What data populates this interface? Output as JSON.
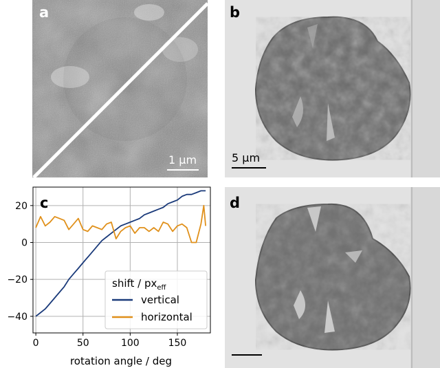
{
  "panels": {
    "a": {
      "letter": "a",
      "scale_label": "1 µm",
      "letter_color": "#ffffff"
    },
    "b": {
      "letter": "b",
      "scale_label": "5 µm"
    },
    "c": {
      "letter": "c"
    },
    "d": {
      "letter": "d"
    }
  },
  "chart_data": {
    "type": "line",
    "xlabel": "rotation angle / deg",
    "ylabel": "",
    "xlim": [
      -3,
      185
    ],
    "ylim": [
      -49,
      30
    ],
    "xticks": [
      0,
      50,
      100,
      150
    ],
    "yticks": [
      -40,
      -20,
      0,
      20
    ],
    "grid": true,
    "legend": {
      "title": "shift / px",
      "title_subscript": "eff",
      "placement": "bottom-right"
    },
    "series": [
      {
        "name": "vertical",
        "color": "#1a3a7a",
        "x": [
          0,
          5,
          10,
          15,
          20,
          25,
          30,
          35,
          40,
          45,
          50,
          55,
          60,
          65,
          70,
          75,
          80,
          85,
          90,
          95,
          100,
          105,
          110,
          115,
          120,
          125,
          130,
          135,
          140,
          145,
          150,
          155,
          160,
          165,
          170,
          175,
          180
        ],
        "y": [
          -40,
          -38,
          -36,
          -33,
          -30,
          -27,
          -24,
          -20,
          -17,
          -14,
          -11,
          -8,
          -5,
          -2,
          1,
          3,
          5,
          7,
          9,
          10,
          11,
          12,
          13,
          15,
          16,
          17,
          18,
          19,
          21,
          22,
          23,
          25,
          26,
          26,
          27,
          28,
          28
        ]
      },
      {
        "name": "horizontal",
        "color": "#e0901a",
        "x": [
          0,
          5,
          10,
          15,
          20,
          25,
          30,
          35,
          40,
          45,
          50,
          55,
          60,
          65,
          70,
          75,
          80,
          85,
          90,
          95,
          100,
          105,
          110,
          115,
          120,
          125,
          130,
          135,
          140,
          145,
          150,
          155,
          160,
          165,
          170,
          175,
          178,
          180
        ],
        "y": [
          8,
          14,
          9,
          11,
          14,
          13,
          12,
          7,
          10,
          13,
          7,
          6,
          9,
          8,
          7,
          10,
          11,
          2,
          6,
          8,
          9,
          5,
          8,
          8,
          6,
          8,
          6,
          11,
          10,
          6,
          9,
          10,
          8,
          0,
          0,
          10,
          20,
          9
        ]
      }
    ]
  }
}
